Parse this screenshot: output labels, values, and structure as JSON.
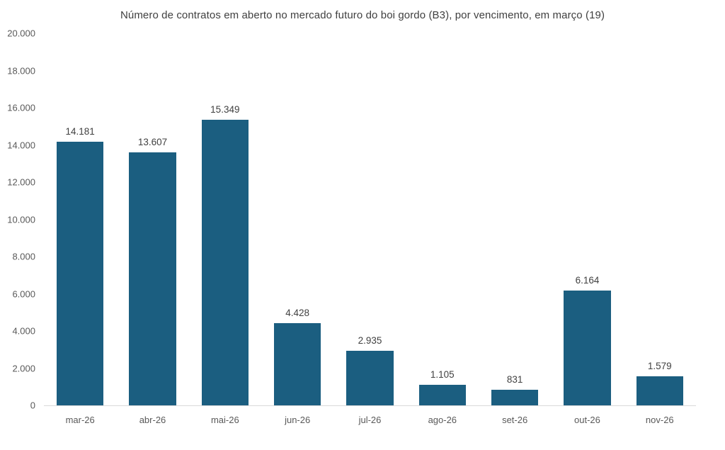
{
  "chart_data": {
    "type": "bar",
    "title": "Número de contratos em aberto no mercado futuro do boi gordo (B3), por vencimento, em março (19)",
    "categories": [
      "mar-26",
      "abr-26",
      "mai-26",
      "jun-26",
      "jul-26",
      "ago-26",
      "set-26",
      "out-26",
      "nov-26"
    ],
    "values": [
      14181,
      13607,
      15349,
      4428,
      2935,
      1105,
      831,
      6164,
      1579
    ],
    "value_labels": [
      "14.181",
      "13.607",
      "15.349",
      "4.428",
      "2.935",
      "1.105",
      "831",
      "6.164",
      "1.579"
    ],
    "xlabel": "",
    "ylabel": "",
    "ylim": [
      0,
      20000
    ],
    "ytick_step": 2000,
    "ytick_labels": [
      "0",
      "2.000",
      "4.000",
      "6.000",
      "8.000",
      "10.000",
      "12.000",
      "14.000",
      "16.000",
      "18.000",
      "20.000"
    ],
    "grid": false,
    "legend_position": "none",
    "data_labels": true,
    "colors": {
      "bar_fill": "#1b5e80",
      "axis_line": "#d9d9d9",
      "title_text": "#404040",
      "data_label_text": "#404040",
      "tick_text": "#595959",
      "background": "#ffffff"
    }
  }
}
